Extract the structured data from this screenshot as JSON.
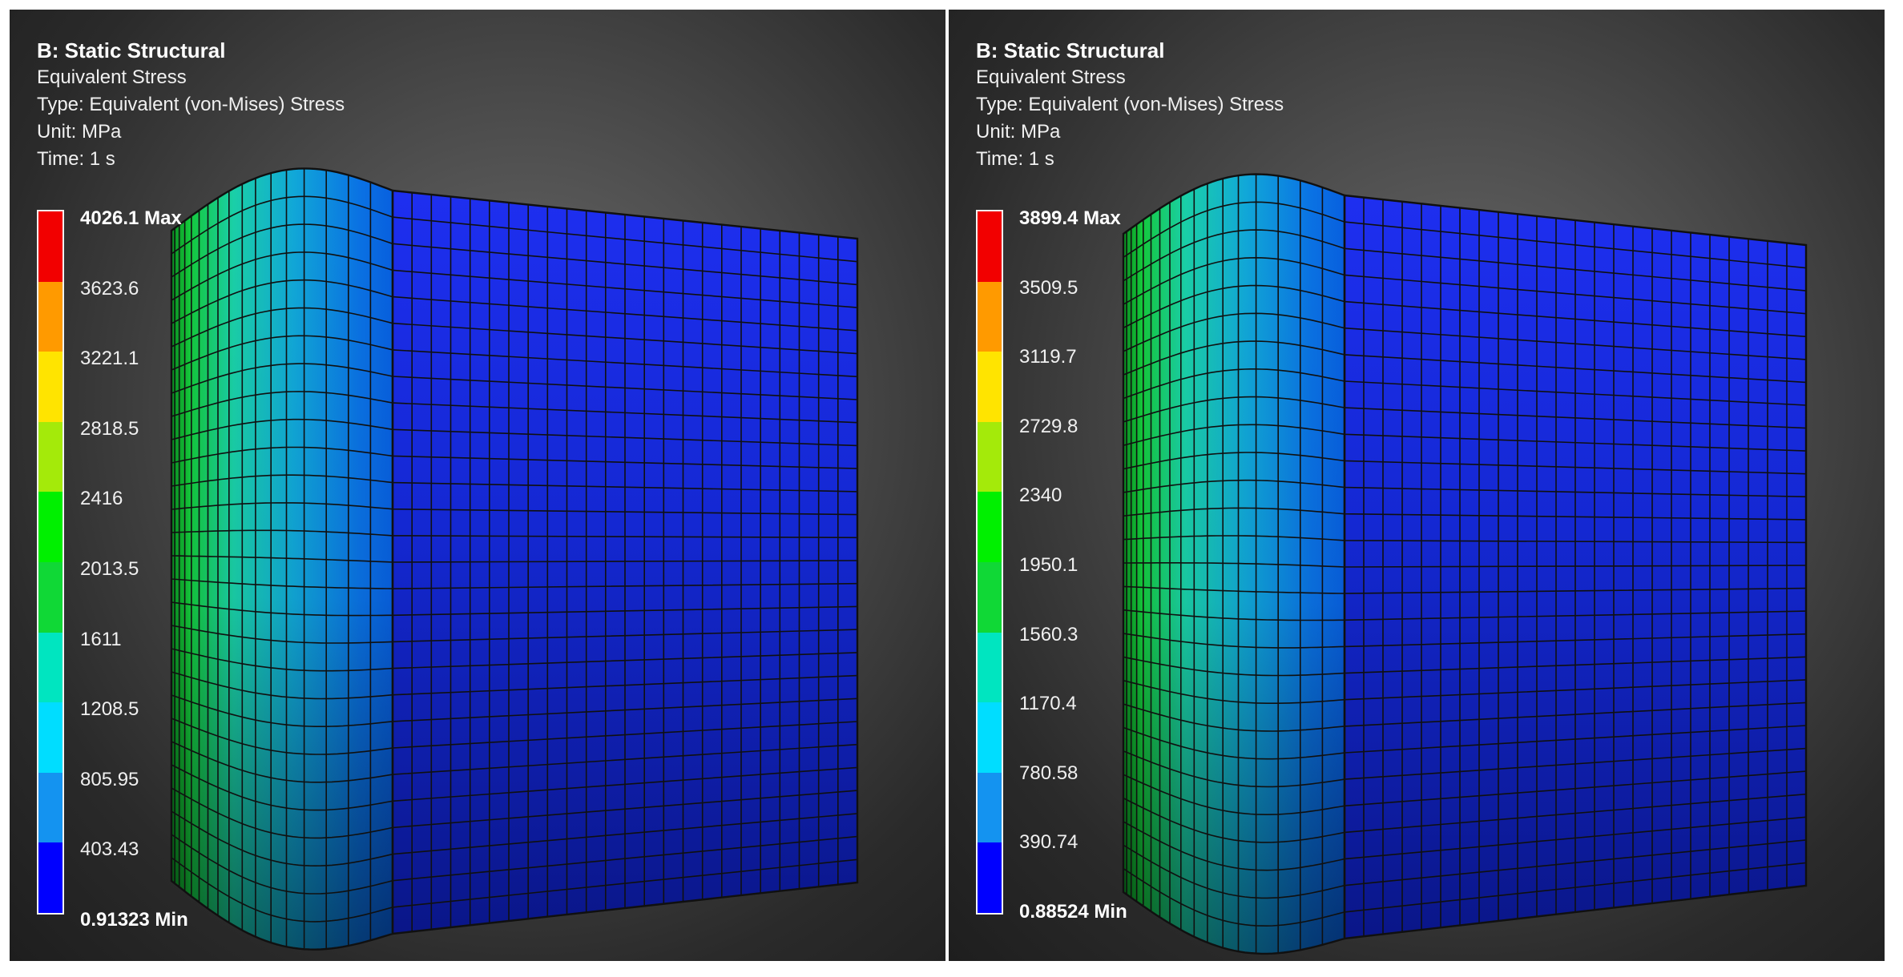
{
  "colors": {
    "legend_bands": [
      "#0000ff",
      "#1493f0",
      "#00ddff",
      "#00e5c0",
      "#10d836",
      "#00f000",
      "#a4ea0a",
      "#ffe400",
      "#ff9a00",
      "#f20000"
    ],
    "mesh_wire": "#101010"
  },
  "panels": [
    {
      "title": "B: Static Structural",
      "info": [
        "Equivalent Stress",
        "Type: Equivalent (von-Mises) Stress",
        "Unit: MPa",
        "Time: 1 s"
      ],
      "legend": [
        "4026.1 Max",
        "3623.6",
        "3221.1",
        "2818.5",
        "2416",
        "2013.5",
        "1611",
        "1208.5",
        "805.95",
        "403.43",
        "0.91323 Min"
      ]
    },
    {
      "title": "B: Static Structural",
      "info": [
        "Equivalent Stress",
        "Type: Equivalent (von-Mises) Stress",
        "Unit: MPa",
        "Time: 1 s"
      ],
      "legend": [
        "3899.4 Max",
        "3509.5",
        "3119.7",
        "2729.8",
        "2340",
        "1950.1",
        "1560.3",
        "1170.4",
        "780.58",
        "390.74",
        "0.88524 Min"
      ]
    }
  ]
}
